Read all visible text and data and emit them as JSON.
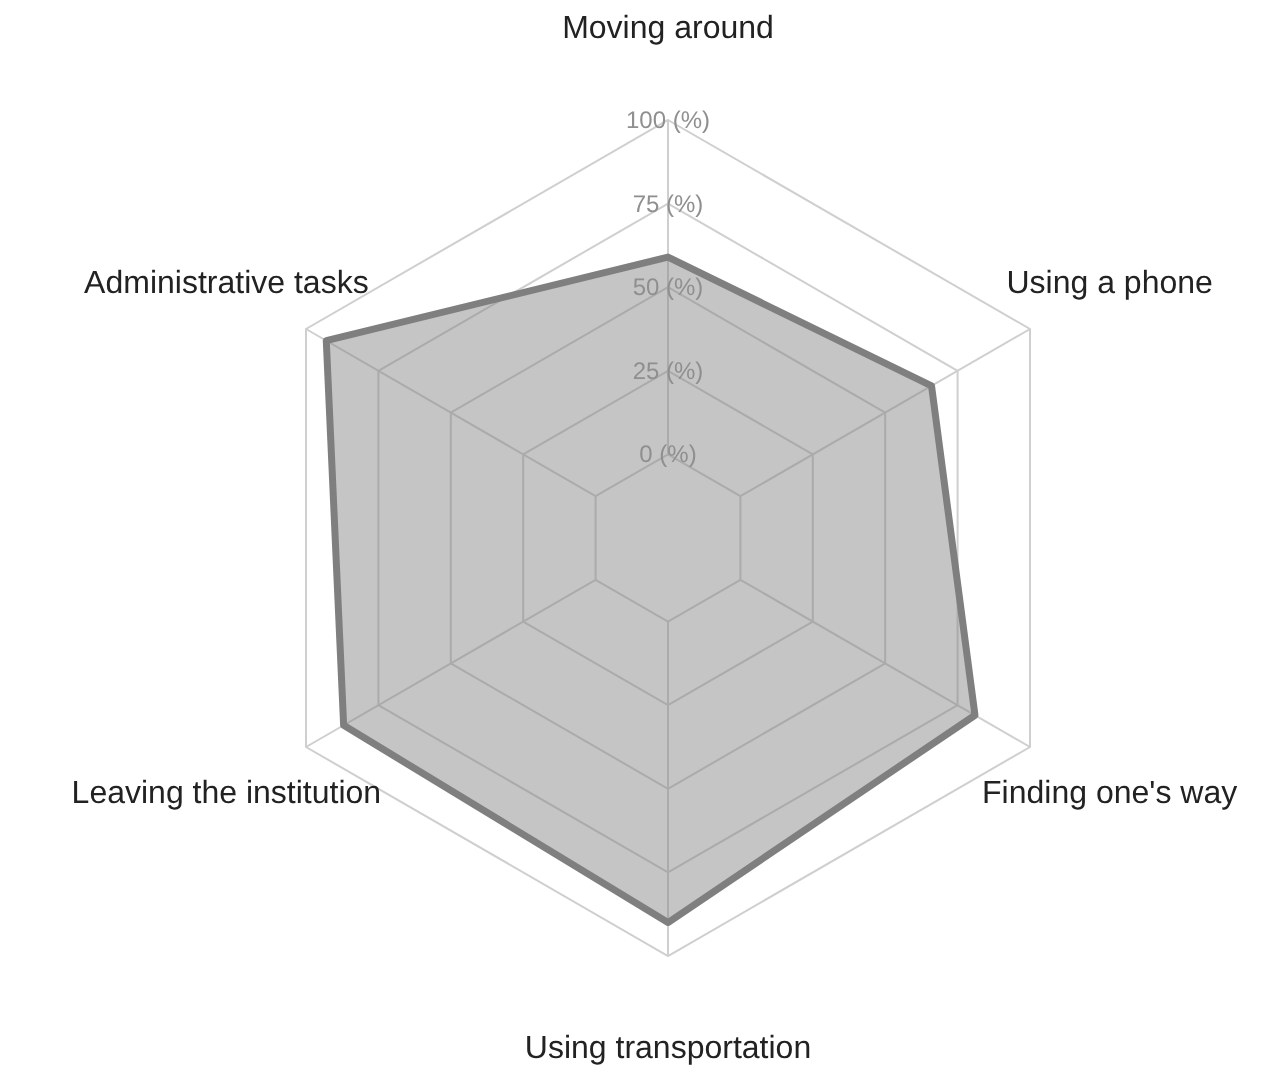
{
  "chart_data": {
    "type": "radar",
    "categories": [
      "Moving around",
      "Using a phone",
      "Finding one's way",
      "Using transportation",
      "Leaving the institution",
      "Administrative tasks"
    ],
    "series": [
      {
        "color": "#7f7f7f",
        "values": [
          59,
          66,
          81,
          90,
          87,
          93
        ]
      }
    ],
    "ylim": [
      -25,
      100
    ],
    "yticks": [
      {
        "value": 0,
        "label": "0 (%)"
      },
      {
        "value": 25,
        "label": "25 (%)"
      },
      {
        "value": 50,
        "label": "50 (%)"
      },
      {
        "value": 75,
        "label": "75 (%)"
      },
      {
        "value": 100,
        "label": "100 (%)"
      }
    ],
    "grid": true
  }
}
